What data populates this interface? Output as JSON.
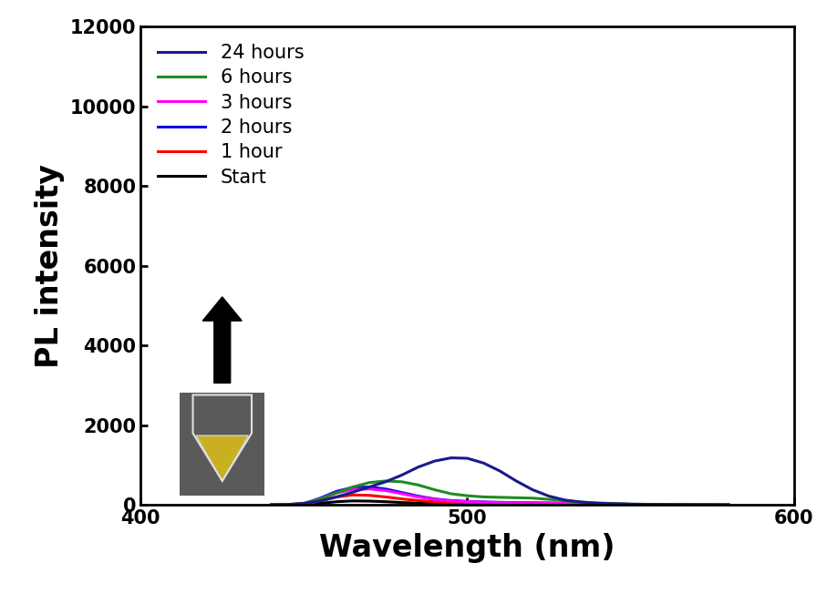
{
  "chart_data": {
    "type": "line",
    "x_label": "Wavelength (nm)",
    "y_label": "PL intensity",
    "x": [
      440,
      445,
      450,
      455,
      460,
      465,
      470,
      475,
      480,
      485,
      490,
      495,
      500,
      505,
      510,
      515,
      520,
      525,
      530,
      535,
      540,
      545,
      550,
      555,
      560,
      565,
      570,
      575,
      580
    ],
    "series": [
      {
        "name": "24 hours",
        "color": "#1a1a8c",
        "values": [
          0,
          10,
          40,
          100,
          200,
          320,
          450,
          580,
          750,
          950,
          1100,
          1180,
          1170,
          1050,
          850,
          600,
          380,
          220,
          120,
          70,
          40,
          30,
          20,
          15,
          10,
          8,
          5,
          3,
          0
        ]
      },
      {
        "name": "6 hours",
        "color": "#228b22",
        "values": [
          0,
          10,
          40,
          150,
          300,
          450,
          560,
          600,
          580,
          500,
          380,
          280,
          230,
          200,
          190,
          180,
          170,
          140,
          100,
          70,
          50,
          35,
          20,
          15,
          10,
          8,
          5,
          3,
          0
        ]
      },
      {
        "name": "3 hours",
        "color": "#ff00ff",
        "values": [
          0,
          5,
          30,
          150,
          300,
          390,
          400,
          360,
          280,
          200,
          140,
          100,
          80,
          70,
          60,
          55,
          50,
          45,
          40,
          30,
          25,
          20,
          15,
          10,
          8,
          5,
          3,
          2,
          0
        ]
      },
      {
        "name": "2 hours",
        "color": "#1010e0",
        "values": [
          0,
          5,
          30,
          170,
          340,
          440,
          450,
          400,
          310,
          220,
          150,
          110,
          90,
          75,
          65,
          60,
          55,
          50,
          40,
          30,
          25,
          20,
          15,
          10,
          8,
          5,
          3,
          2,
          0
        ]
      },
      {
        "name": "1 hour",
        "color": "#ff0000",
        "values": [
          0,
          3,
          20,
          100,
          200,
          250,
          240,
          200,
          150,
          110,
          80,
          60,
          50,
          45,
          40,
          35,
          30,
          25,
          20,
          15,
          12,
          10,
          8,
          6,
          5,
          4,
          3,
          2,
          0
        ]
      },
      {
        "name": "Start",
        "color": "#000000",
        "values": [
          0,
          2,
          10,
          40,
          80,
          100,
          95,
          80,
          60,
          45,
          35,
          28,
          22,
          20,
          18,
          16,
          14,
          12,
          10,
          8,
          6,
          5,
          4,
          3,
          2,
          2,
          1,
          1,
          0
        ]
      }
    ],
    "xlim": [
      400,
      600
    ],
    "xticks": [
      400,
      500,
      600
    ],
    "ylim": [
      0,
      12000
    ],
    "yticks": [
      0,
      2000,
      4000,
      6000,
      8000,
      10000,
      12000
    ],
    "legend": "upper left"
  }
}
